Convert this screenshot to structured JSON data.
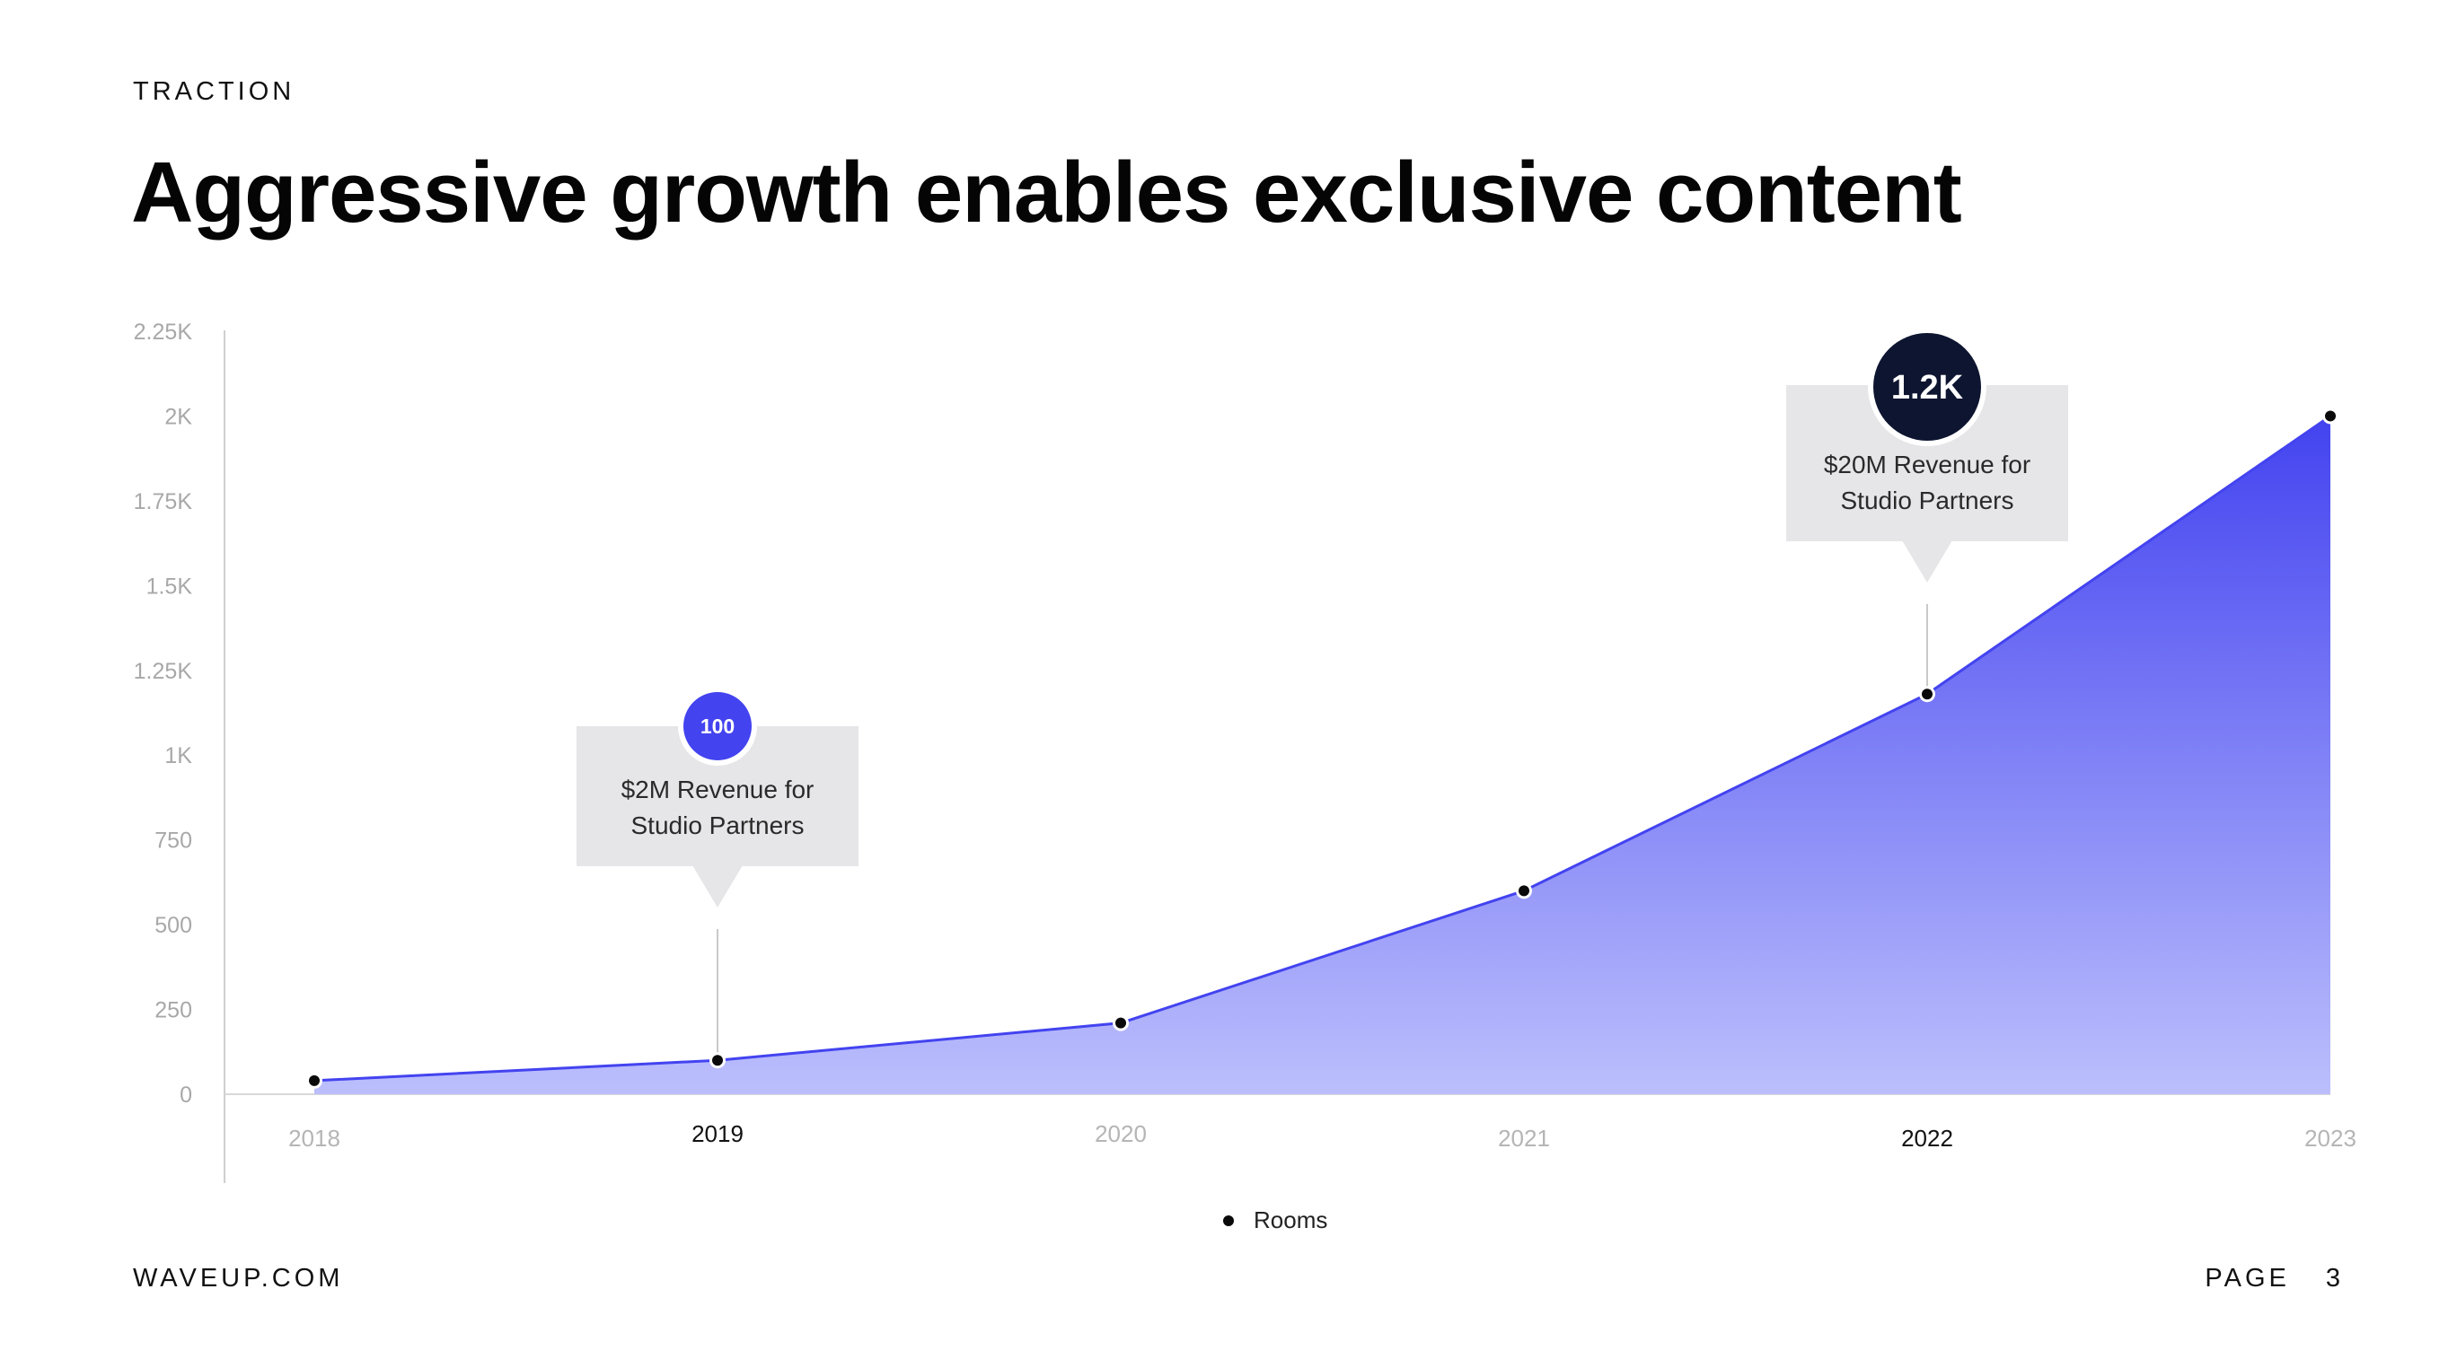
{
  "header": {
    "eyebrow": "TRACTION",
    "title": "Aggressive growth enables exclusive content"
  },
  "footer": {
    "site": "WAVEUP.COM",
    "page_label": "PAGE",
    "page_number": "3"
  },
  "colors": {
    "accent": "#4343f0",
    "accent_light": "#bcbffc",
    "callout_bg": "#e6e6e8",
    "badge_dark": "#0d1530",
    "axis_text": "#a8a8a8"
  },
  "chart_data": {
    "type": "area",
    "x": [
      "2018",
      "2019",
      "2020",
      "2021",
      "2022",
      "2023"
    ],
    "series": [
      {
        "name": "Rooms",
        "values": [
          40,
          100,
          210,
          600,
          1180,
          2000
        ]
      }
    ],
    "ylim": [
      0,
      2250
    ],
    "yticks": [
      0,
      250,
      500,
      750,
      1000,
      1250,
      1500,
      1750,
      2000,
      2250
    ],
    "ytick_labels": [
      "0",
      "250",
      "500",
      "750",
      "1K",
      "1.25K",
      "1.5K",
      "1.75K",
      "2K",
      "2.25K"
    ],
    "xtick_labels": [
      "2018",
      "2019",
      "2020",
      "2021",
      "2022",
      "2023"
    ],
    "highlighted_x": [
      "2019",
      "2022"
    ],
    "grid": false,
    "legend_position": "bottom-center",
    "annotations": [
      {
        "x": "2019",
        "badge": "100",
        "badge_style": "accent",
        "lines": [
          "$2M Revenue for",
          "Studio Partners"
        ]
      },
      {
        "x": "2022",
        "badge": "1.2K",
        "badge_style": "dark",
        "lines": [
          "$20M Revenue for",
          "Studio Partners"
        ]
      }
    ]
  }
}
